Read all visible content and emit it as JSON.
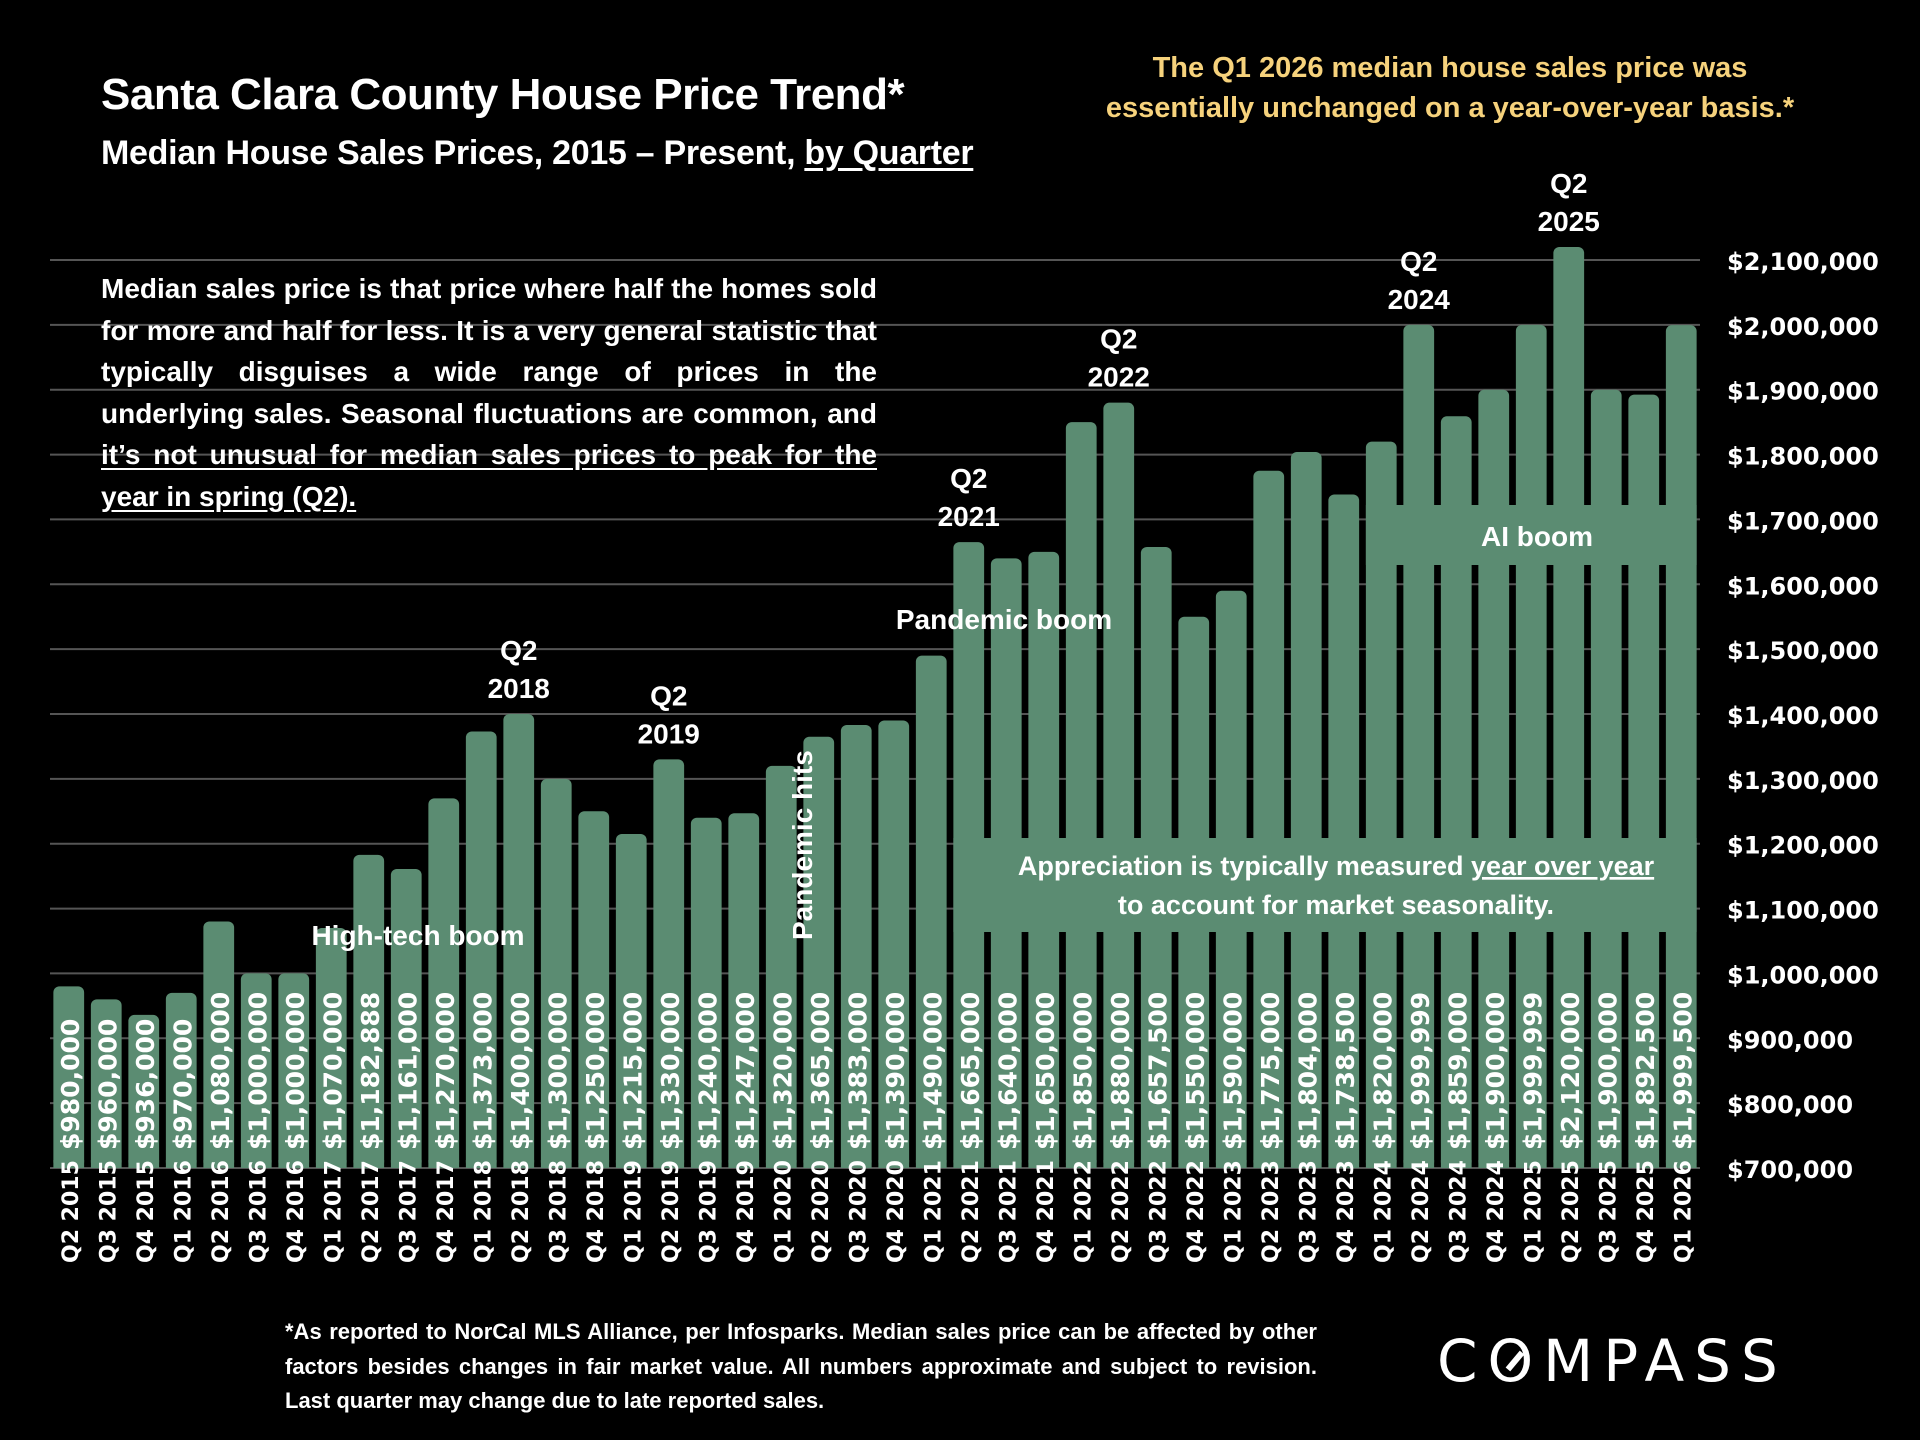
{
  "header": {
    "title": "Santa Clara County House Price Trend*",
    "subtitle_prefix": "Median House Sales Prices, 2015 – Present, ",
    "subtitle_underlined": "by Quarter"
  },
  "callout": {
    "line1": "The Q1 2026 median house sales price was",
    "line2": "essentially unchanged on a year-over-year basis.*",
    "color": "#f6d27c"
  },
  "explanation": {
    "text_plain": "Median sales price is that price where half the homes sold for more and half for less. It is a very general statistic that typically disguises a wide range of prices in the underlying sales. Seasonal fluctuations are common, and ",
    "text_underlined": "it’s not unusual for median sales prices to peak for the year in spring (Q2)."
  },
  "footnote": "*As reported to NorCal MLS Alliance, per Infosparks. Median sales price can be affected by other factors besides changes in fair market value. All numbers approximate and subject to revision. Last quarter may change due to late reported sales.",
  "logo": {
    "prefix": "C",
    "o": "O",
    "suffix": "MPASS"
  },
  "colors": {
    "bar": "#5b8c72",
    "background": "#000000",
    "text": "#ffffff",
    "gridline": "#555555"
  },
  "chart_data": {
    "type": "bar",
    "title": "Santa Clara County House Price Trend*",
    "subtitle": "Median House Sales Prices, 2015 – Present, by Quarter",
    "xlabel": "",
    "ylabel": "",
    "ylim": [
      700000,
      2100000
    ],
    "yaxis_position": "right",
    "grid": true,
    "yticks": [
      700000,
      800000,
      900000,
      1000000,
      1100000,
      1200000,
      1300000,
      1400000,
      1500000,
      1600000,
      1700000,
      1800000,
      1900000,
      2000000,
      2100000
    ],
    "ytick_labels": [
      "$700,000",
      "$800,000",
      "$900,000",
      "$1,000,000",
      "$1,100,000",
      "$1,200,000",
      "$1,300,000",
      "$1,400,000",
      "$1,500,000",
      "$1,600,000",
      "$1,700,000",
      "$1,800,000",
      "$1,900,000",
      "$2,000,000",
      "$2,100,000"
    ],
    "categories": [
      "Q2 2015",
      "Q3 2015",
      "Q4 2015",
      "Q1 2016",
      "Q2 2016",
      "Q3 2016",
      "Q4 2016",
      "Q1 2017",
      "Q2 2017",
      "Q3 2017",
      "Q4 2017",
      "Q1 2018",
      "Q2 2018",
      "Q3 2018",
      "Q4 2018",
      "Q1 2019",
      "Q2 2019",
      "Q3 2019",
      "Q4 2019",
      "Q1 2020",
      "Q2 2020",
      "Q3 2020",
      "Q4 2020",
      "Q1 2021",
      "Q2 2021",
      "Q3 2021",
      "Q4 2021",
      "Q1 2022",
      "Q2 2022",
      "Q3 2022",
      "Q4 2022",
      "Q1 2023",
      "Q2 2023",
      "Q3 2023",
      "Q4 2023",
      "Q1 2024",
      "Q2 2024",
      "Q3 2024",
      "Q4 2024",
      "Q1 2025",
      "Q2 2025",
      "Q3 2025",
      "Q4 2025",
      "Q1 2026"
    ],
    "values": [
      980000,
      960000,
      936000,
      970000,
      1080000,
      1000000,
      1000000,
      1070000,
      1182888,
      1161000,
      1270000,
      1373000,
      1400000,
      1300000,
      1250000,
      1215000,
      1330000,
      1240000,
      1247000,
      1320000,
      1365000,
      1383000,
      1390000,
      1490000,
      1665000,
      1640000,
      1650000,
      1850000,
      1880000,
      1657500,
      1550000,
      1590000,
      1775000,
      1804000,
      1738500,
      1820000,
      1999999,
      1859000,
      1900000,
      1999999,
      2120000,
      1900000,
      1892500,
      1999500
    ],
    "data_labels": [
      "$980,000",
      "$960,000",
      "$936,000",
      "$970,000",
      "$1,080,000",
      "$1,000,000",
      "$1,000,000",
      "$1,070,000",
      "$1,182,888",
      "$1,161,000",
      "$1,270,000",
      "$1,373,000",
      "$1,400,000",
      "$1,300,000",
      "$1,250,000",
      "$1,215,000",
      "$1,330,000",
      "$1,240,000",
      "$1,247,000",
      "$1,320,000",
      "$1,365,000",
      "$1,383,000",
      "$1,390,000",
      "$1,490,000",
      "$1,665,000",
      "$1,640,000",
      "$1,650,000",
      "$1,850,000",
      "$1,880,000",
      "$1,657,500",
      "$1,550,000",
      "$1,590,000",
      "$1,775,000",
      "$1,804,000",
      "$1,738,500",
      "$1,820,000",
      "$1,999,999",
      "$1,859,000",
      "$1,900,000",
      "$1,999,999",
      "$2,120,000",
      "$1,900,000",
      "$1,892,500",
      "$1,999,500"
    ],
    "peak_annotations": [
      {
        "category": "Q2 2018",
        "line1": "Q2",
        "line2": "2018"
      },
      {
        "category": "Q2 2019",
        "line1": "Q2",
        "line2": "2019"
      },
      {
        "category": "Q2 2021",
        "line1": "Q2",
        "line2": "2021"
      },
      {
        "category": "Q2 2022",
        "line1": "Q2",
        "line2": "2022"
      },
      {
        "category": "Q2 2024",
        "line1": "Q2",
        "line2": "2024"
      },
      {
        "category": "Q2 2025",
        "line1": "Q2",
        "line2": "2025"
      }
    ],
    "period_annotations": [
      {
        "text": "High-tech boom",
        "near_category": "Q1 2017"
      },
      {
        "text": "Pandemic hits",
        "near_category": "Q1 2020",
        "rotated": true
      },
      {
        "text": "Pandemic boom",
        "near_category": "Q1 2021"
      },
      {
        "text": "AI boom",
        "near_category": "Q1 2025"
      }
    ],
    "band_note": {
      "text_plain": "Appreciation is typically measured ",
      "text_underlined": "year over year",
      "line2": "to account for market seasonality."
    }
  }
}
